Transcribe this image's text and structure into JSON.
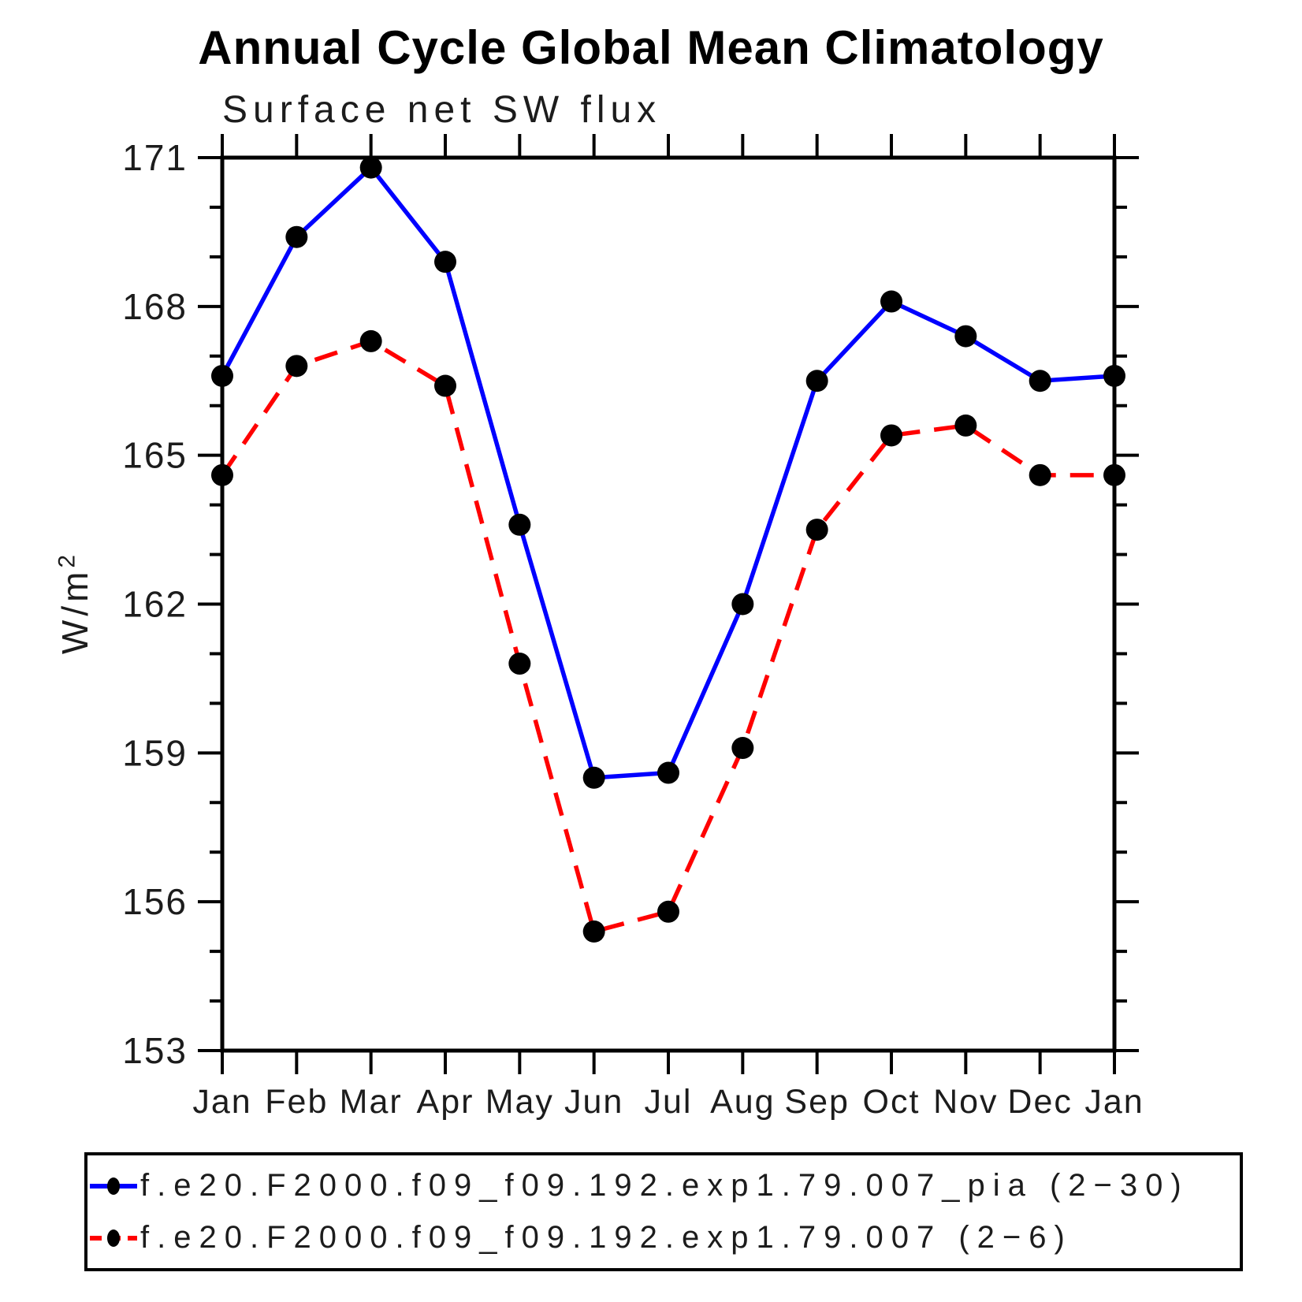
{
  "title": "Annual Cycle Global Mean Climatology",
  "subtitle": "Surface net SW flux",
  "ylabel_base": "W/m",
  "ylabel_exp": "2",
  "chart_data": {
    "type": "line",
    "title": "Annual Cycle Global Mean Climatology",
    "subtitle": "Surface net SW flux",
    "ylabel": "W/m^2",
    "x_categories": [
      "Jan",
      "Feb",
      "Mar",
      "Apr",
      "May",
      "Jun",
      "Jul",
      "Aug",
      "Sep",
      "Oct",
      "Nov",
      "Dec",
      "Jan"
    ],
    "ylim": [
      153,
      171
    ],
    "ytick_major_interval": 3,
    "ytick_minor_interval": 1,
    "ytick_labels": [
      "171",
      "168",
      "165",
      "162",
      "159",
      "156",
      "153"
    ],
    "grid": false,
    "legend_position": "bottom",
    "marker_color": "#000000",
    "axis_color": "#000000",
    "series": [
      {
        "name": "f.e20.F2000.f09_f09.192.exp1.79.007_pia (2−30)",
        "color": "#0000ff",
        "style": "solid",
        "values": [
          166.6,
          169.4,
          170.8,
          168.9,
          163.6,
          158.5,
          158.6,
          162.0,
          166.5,
          168.1,
          167.4,
          166.5,
          166.6
        ]
      },
      {
        "name": "f.e20.F2000.f09_f09.192.exp1.79.007 (2−6)",
        "color": "#ff0000",
        "style": "dashed",
        "values": [
          164.6,
          166.8,
          167.3,
          166.4,
          160.8,
          155.4,
          155.8,
          159.1,
          163.5,
          165.4,
          165.6,
          164.6,
          164.6
        ]
      }
    ]
  }
}
